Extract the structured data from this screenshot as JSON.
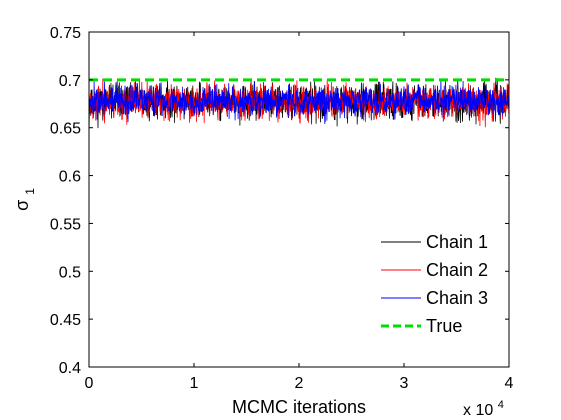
{
  "chart_data": {
    "type": "line",
    "title": "",
    "xlabel": "MCMC iterations",
    "ylabel": "σ",
    "ylabel_subscript": "1",
    "x_multiplier": "x 10",
    "x_multiplier_exponent": "4",
    "xlim": [
      0,
      40000
    ],
    "ylim": [
      0.4,
      0.75
    ],
    "x_ticks": [
      0,
      10000,
      20000,
      30000,
      40000
    ],
    "x_tick_labels": [
      "0",
      "1",
      "2",
      "3",
      "4"
    ],
    "y_ticks": [
      0.4,
      0.45,
      0.5,
      0.55,
      0.6,
      0.65,
      0.7,
      0.75
    ],
    "y_tick_labels": [
      "0.4",
      "0.45",
      "0.5",
      "0.55",
      "0.6",
      "0.65",
      "0.7",
      "0.75"
    ],
    "grid": false,
    "legend_position": "bottom-right",
    "series": [
      {
        "name": "Chain 1",
        "color": "#000000",
        "style": "solid",
        "mean": 0.677,
        "spread": 0.011,
        "seed": 11
      },
      {
        "name": "Chain 2",
        "color": "#ff0000",
        "style": "solid",
        "mean": 0.677,
        "spread": 0.011,
        "seed": 23
      },
      {
        "name": "Chain 3",
        "color": "#0000ff",
        "style": "solid",
        "mean": 0.678,
        "spread": 0.01,
        "seed": 37
      },
      {
        "name": "True",
        "color": "#00dd00",
        "style": "dashed",
        "value": 0.7
      }
    ]
  }
}
